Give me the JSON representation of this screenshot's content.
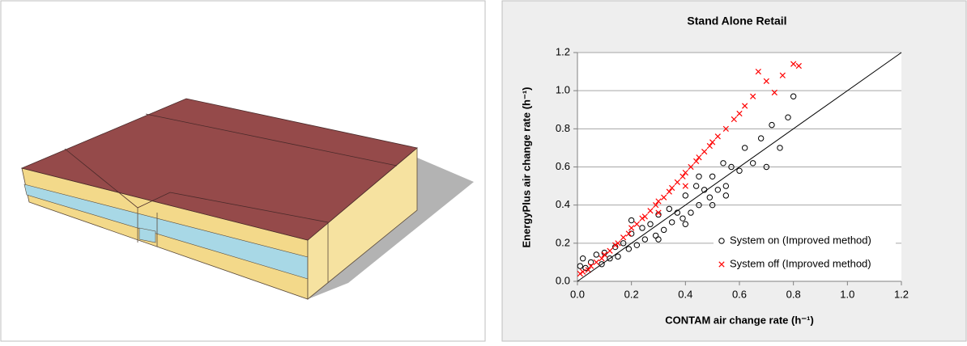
{
  "chart_data": {
    "type": "scatter",
    "title": "Stand Alone Retail",
    "x_label": "CONTAM air change rate (h⁻¹)",
    "y_label": "EnergyPlus air change rate (h⁻¹)",
    "xlim": [
      0,
      1.2
    ],
    "ylim": [
      0,
      1.2
    ],
    "xticks": [
      {
        "value": 0,
        "label": "0.0"
      },
      0.2,
      0.4,
      0.6,
      0.8,
      {
        "value": 1,
        "label": "1.0"
      },
      1.2
    ],
    "yticks": [
      {
        "value": 0,
        "label": "0.0"
      },
      0.2,
      0.4,
      0.6,
      0.8,
      {
        "value": 1,
        "label": "1.0"
      },
      1.2
    ],
    "grid": true,
    "legend": "lower right",
    "reference_line": {
      "x": [
        0,
        1.2
      ],
      "y": [
        0,
        1.2
      ],
      "color": "#000000"
    },
    "series": [
      {
        "name": "System on (Improved method)",
        "marker": "circle",
        "color": "#000000",
        "x": [
          0.01,
          0.02,
          0.03,
          0.05,
          0.07,
          0.09,
          0.1,
          0.12,
          0.14,
          0.15,
          0.17,
          0.19,
          0.2,
          0.22,
          0.24,
          0.25,
          0.27,
          0.29,
          0.3,
          0.32,
          0.34,
          0.35,
          0.37,
          0.39,
          0.4,
          0.42,
          0.44,
          0.45,
          0.47,
          0.49,
          0.5,
          0.52,
          0.54,
          0.55,
          0.57,
          0.6,
          0.62,
          0.65,
          0.68,
          0.7,
          0.72,
          0.75,
          0.78,
          0.8,
          0.3,
          0.4,
          0.5,
          0.2,
          0.45,
          0.55
        ],
        "values": [
          0.08,
          0.12,
          0.07,
          0.1,
          0.14,
          0.09,
          0.15,
          0.12,
          0.18,
          0.13,
          0.2,
          0.17,
          0.25,
          0.19,
          0.28,
          0.22,
          0.3,
          0.24,
          0.35,
          0.27,
          0.38,
          0.31,
          0.36,
          0.33,
          0.45,
          0.36,
          0.5,
          0.4,
          0.48,
          0.44,
          0.55,
          0.48,
          0.62,
          0.5,
          0.6,
          0.58,
          0.7,
          0.62,
          0.75,
          0.6,
          0.82,
          0.7,
          0.86,
          0.97,
          0.22,
          0.3,
          0.4,
          0.32,
          0.55,
          0.45
        ]
      },
      {
        "name": "System off (Improved method)",
        "marker": "x",
        "color": "#ff0000",
        "x": [
          0.01,
          0.02,
          0.04,
          0.05,
          0.07,
          0.09,
          0.1,
          0.12,
          0.14,
          0.15,
          0.17,
          0.19,
          0.2,
          0.22,
          0.24,
          0.25,
          0.27,
          0.29,
          0.3,
          0.32,
          0.34,
          0.35,
          0.37,
          0.39,
          0.4,
          0.42,
          0.44,
          0.45,
          0.47,
          0.49,
          0.5,
          0.52,
          0.55,
          0.58,
          0.6,
          0.62,
          0.65,
          0.67,
          0.7,
          0.73,
          0.76,
          0.8,
          0.82,
          0.3,
          0.4
        ],
        "values": [
          0.04,
          0.05,
          0.06,
          0.08,
          0.1,
          0.12,
          0.14,
          0.16,
          0.19,
          0.2,
          0.23,
          0.25,
          0.28,
          0.3,
          0.33,
          0.34,
          0.37,
          0.4,
          0.42,
          0.44,
          0.47,
          0.49,
          0.52,
          0.55,
          0.57,
          0.6,
          0.63,
          0.65,
          0.68,
          0.71,
          0.73,
          0.76,
          0.8,
          0.85,
          0.88,
          0.92,
          0.97,
          1.1,
          1.05,
          0.99,
          1.08,
          1.14,
          1.13,
          0.36,
          0.5
        ]
      }
    ]
  }
}
